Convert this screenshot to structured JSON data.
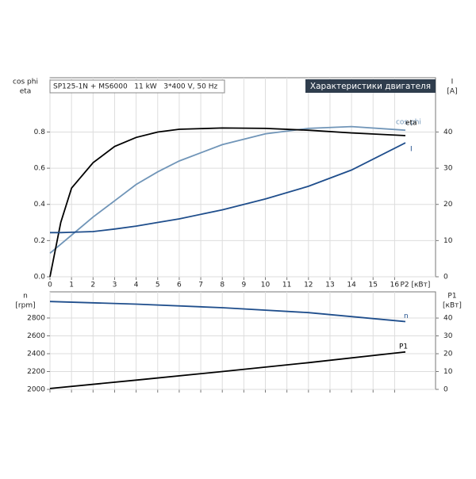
{
  "chart_data": [
    {
      "type": "line",
      "title": "Характеристики двигателя",
      "subtitle": "SP125-1N + MS6000   11 kW   3*400 V, 50 Hz",
      "ylabel": [
        "cos phi",
        "eta"
      ],
      "y2label": [
        "I",
        "[A]"
      ],
      "xlabel": "P2 [кВт]",
      "x": [
        0,
        0.5,
        1,
        2,
        3,
        4,
        5,
        6,
        8,
        10,
        12,
        14,
        16.5
      ],
      "xlim": [
        0,
        17.9
      ],
      "xticks": [
        0,
        1,
        2,
        3,
        4,
        5,
        6,
        7,
        8,
        9,
        10,
        11,
        12,
        13,
        14,
        15,
        16
      ],
      "ylim": [
        0,
        1.1
      ],
      "yticks": [
        {
          "value": 0,
          "label": "0.0"
        },
        0.2,
        0.4,
        0.6,
        0.8
      ],
      "y2lim": [
        0,
        55
      ],
      "y2ticks": [
        0,
        10,
        20,
        30,
        40
      ],
      "grid": true,
      "series": [
        {
          "name": "cos phi",
          "color": "#7095b8",
          "values": [
            0.13,
            0.18,
            0.23,
            0.33,
            0.42,
            0.51,
            0.58,
            0.64,
            0.73,
            0.79,
            0.82,
            0.83,
            0.81
          ]
        },
        {
          "name": "eta",
          "color": "#000000",
          "values": [
            0,
            0.3,
            0.49,
            0.63,
            0.72,
            0.77,
            0.8,
            0.815,
            0.822,
            0.82,
            0.81,
            0.795,
            0.78
          ]
        },
        {
          "name": "I",
          "color": "#1f4e8c",
          "axis": "y2",
          "values": [
            12.2,
            12.2,
            12.3,
            12.5,
            13.2,
            14,
            15,
            16,
            18.5,
            21.5,
            25,
            29.5,
            37
          ]
        }
      ]
    },
    {
      "type": "line",
      "ylabel": [
        "n",
        "[rpm]"
      ],
      "y2label": [
        "P1",
        "[кВт]"
      ],
      "x": [
        0,
        4,
        8,
        12,
        16.5
      ],
      "xlim": [
        0,
        17.9
      ],
      "xticks": [
        0,
        1,
        2,
        3,
        4,
        5,
        6,
        7,
        8,
        9,
        10,
        11,
        12,
        13,
        14,
        15,
        16
      ],
      "ylim": [
        2000,
        3093
      ],
      "yticks": [
        2000,
        2200,
        2400,
        2600,
        2800
      ],
      "y2lim": [
        0,
        54.7
      ],
      "y2ticks": [
        0,
        10,
        20,
        30,
        40
      ],
      "grid": true,
      "series": [
        {
          "name": "n",
          "color": "#1f4e8c",
          "values": [
            2985,
            2955,
            2915,
            2860,
            2760
          ]
        },
        {
          "name": "P1",
          "color": "#000000",
          "axis": "y2",
          "values": [
            0.5,
            5.2,
            10,
            15,
            21
          ]
        }
      ]
    }
  ]
}
